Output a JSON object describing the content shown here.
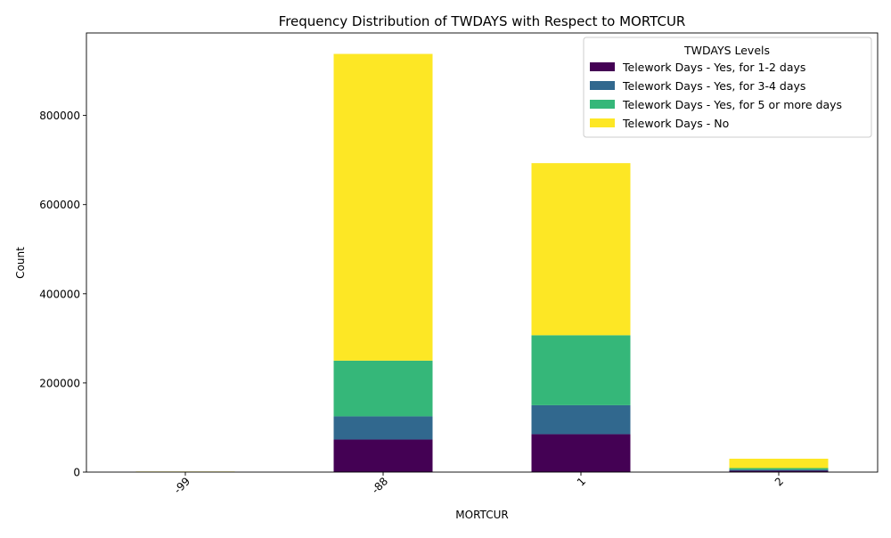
{
  "chart_data": {
    "type": "bar",
    "stacked": true,
    "title": "Frequency Distribution of TWDAYS with Respect to MORTCUR",
    "xlabel": "MORTCUR",
    "ylabel": "Count",
    "categories": [
      "-99",
      "-88",
      "1",
      "2"
    ],
    "yticks": [
      0,
      200000,
      400000,
      600000,
      800000
    ],
    "ylim": [
      0,
      985000
    ],
    "legend": {
      "title": "TWDAYS Levels",
      "placement": "top-right"
    },
    "series": [
      {
        "name": "Telework Days - Yes, for 1-2 days",
        "color": "#440154",
        "values": [
          200,
          73000,
          85000,
          3000
        ]
      },
      {
        "name": "Telework Days - Yes, for 3-4 days",
        "color": "#31688e",
        "values": [
          100,
          52000,
          65000,
          2500
        ]
      },
      {
        "name": "Telework Days - Yes, for 5 or more days",
        "color": "#35b779",
        "values": [
          100,
          125000,
          157000,
          3500
        ]
      },
      {
        "name": "Telework Days - No",
        "color": "#fde725",
        "values": [
          900,
          688000,
          386000,
          21000
        ]
      }
    ]
  }
}
